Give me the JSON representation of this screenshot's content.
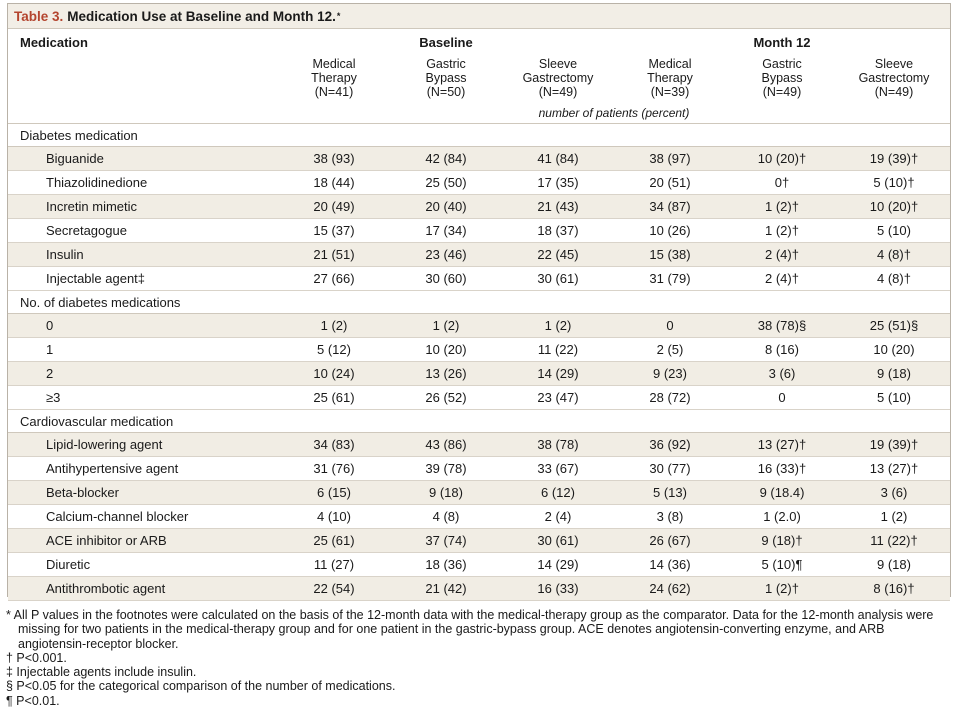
{
  "title": {
    "label": "Table 3.",
    "text": "Medication Use at Baseline and Month 12.",
    "mark": "*"
  },
  "headers": {
    "medication": "Medication",
    "baseline": "Baseline",
    "month12": "Month 12",
    "columns": [
      {
        "line1": "Medical",
        "line2": "Therapy",
        "line3": "(N=41)"
      },
      {
        "line1": "Gastric",
        "line2": "Bypass",
        "line3": "(N=50)"
      },
      {
        "line1": "Sleeve",
        "line2": "Gastrectomy",
        "line3": "(N=49)"
      },
      {
        "line1": "Medical",
        "line2": "Therapy",
        "line3": "(N=39)"
      },
      {
        "line1": "Gastric",
        "line2": "Bypass",
        "line3": "(N=49)"
      },
      {
        "line1": "Sleeve",
        "line2": "Gastrectomy",
        "line3": "(N=49)"
      }
    ],
    "unit": "number of patients (percent)"
  },
  "sections": [
    {
      "title": "Diabetes medication",
      "rows": [
        {
          "name": "Biguanide",
          "values": [
            "38 (93)",
            "42 (84)",
            "41 (84)",
            "38 (97)",
            "10 (20)†",
            "19 (39)†"
          ]
        },
        {
          "name": "Thiazolidinedione",
          "values": [
            "18 (44)",
            "25 (50)",
            "17 (35)",
            "20 (51)",
            "0†",
            "5 (10)†"
          ]
        },
        {
          "name": "Incretin mimetic",
          "values": [
            "20 (49)",
            "20 (40)",
            "21 (43)",
            "34 (87)",
            "1 (2)†",
            "10 (20)†"
          ]
        },
        {
          "name": "Secretagogue",
          "values": [
            "15 (37)",
            "17 (34)",
            "18 (37)",
            "10 (26)",
            "1 (2)†",
            "5 (10)"
          ]
        },
        {
          "name": "Insulin",
          "values": [
            "21 (51)",
            "23 (46)",
            "22 (45)",
            "15 (38)",
            "2 (4)†",
            "4 (8)†"
          ]
        },
        {
          "name": "Injectable agent‡",
          "values": [
            "27 (66)",
            "30 (60)",
            "30 (61)",
            "31 (79)",
            "2 (4)†",
            "4 (8)†"
          ]
        }
      ]
    },
    {
      "title": "No. of diabetes medications",
      "rows": [
        {
          "name": "0",
          "values": [
            "1 (2)",
            "1 (2)",
            "1 (2)",
            "0",
            "38 (78)§",
            "25 (51)§"
          ]
        },
        {
          "name": "1",
          "values": [
            "5 (12)",
            "10 (20)",
            "11 (22)",
            "2 (5)",
            "8 (16)",
            "10 (20)"
          ]
        },
        {
          "name": "2",
          "values": [
            "10 (24)",
            "13 (26)",
            "14 (29)",
            "9 (23)",
            "3 (6)",
            "9 (18)"
          ]
        },
        {
          "name": "≥3",
          "values": [
            "25 (61)",
            "26 (52)",
            "23 (47)",
            "28 (72)",
            "0",
            "5 (10)"
          ]
        }
      ]
    },
    {
      "title": "Cardiovascular medication",
      "rows": [
        {
          "name": "Lipid-lowering agent",
          "values": [
            "34 (83)",
            "43 (86)",
            "38 (78)",
            "36 (92)",
            "13 (27)†",
            "19 (39)†"
          ]
        },
        {
          "name": "Antihypertensive agent",
          "values": [
            "31 (76)",
            "39 (78)",
            "33 (67)",
            "30 (77)",
            "16 (33)†",
            "13 (27)†"
          ]
        },
        {
          "name": "Beta-blocker",
          "values": [
            "6 (15)",
            "9 (18)",
            "6 (12)",
            "5 (13)",
            "9 (18.4)",
            "3 (6)"
          ]
        },
        {
          "name": "Calcium-channel blocker",
          "values": [
            "4 (10)",
            "4 (8)",
            "2 (4)",
            "3 (8)",
            "1 (2.0)",
            "1 (2)"
          ]
        },
        {
          "name": "ACE inhibitor or ARB",
          "values": [
            "25 (61)",
            "37 (74)",
            "30 (61)",
            "26 (67)",
            "9 (18)†",
            "11 (22)†"
          ]
        },
        {
          "name": "Diuretic",
          "values": [
            "11 (27)",
            "18 (36)",
            "14 (29)",
            "14 (36)",
            "5 (10)¶",
            "9 (18)"
          ]
        },
        {
          "name": "Antithrombotic agent",
          "values": [
            "22 (54)",
            "21 (42)",
            "16 (33)",
            "24 (62)",
            "1 (2)†",
            "8 (16)†"
          ]
        }
      ]
    }
  ],
  "footnotes": [
    "* All P values in the footnotes were calculated on the basis of the 12-month data with the medical-therapy group as the comparator. Data for the 12-month analysis were missing for two patients in the medical-therapy group and for one patient in the gastric-bypass group. ACE denotes angiotensin-converting enzyme, and ARB angiotensin-receptor blocker.",
    "† P<0.001.",
    "‡ Injectable agents include insulin.",
    "§ P<0.05 for the categorical comparison of the number of medications.",
    "¶ P<0.01."
  ],
  "colors": {
    "title_label": "#b4452f",
    "title_bg": "#f2eee6",
    "shade": "#f1ede4",
    "rule": "#cfc8bc"
  }
}
